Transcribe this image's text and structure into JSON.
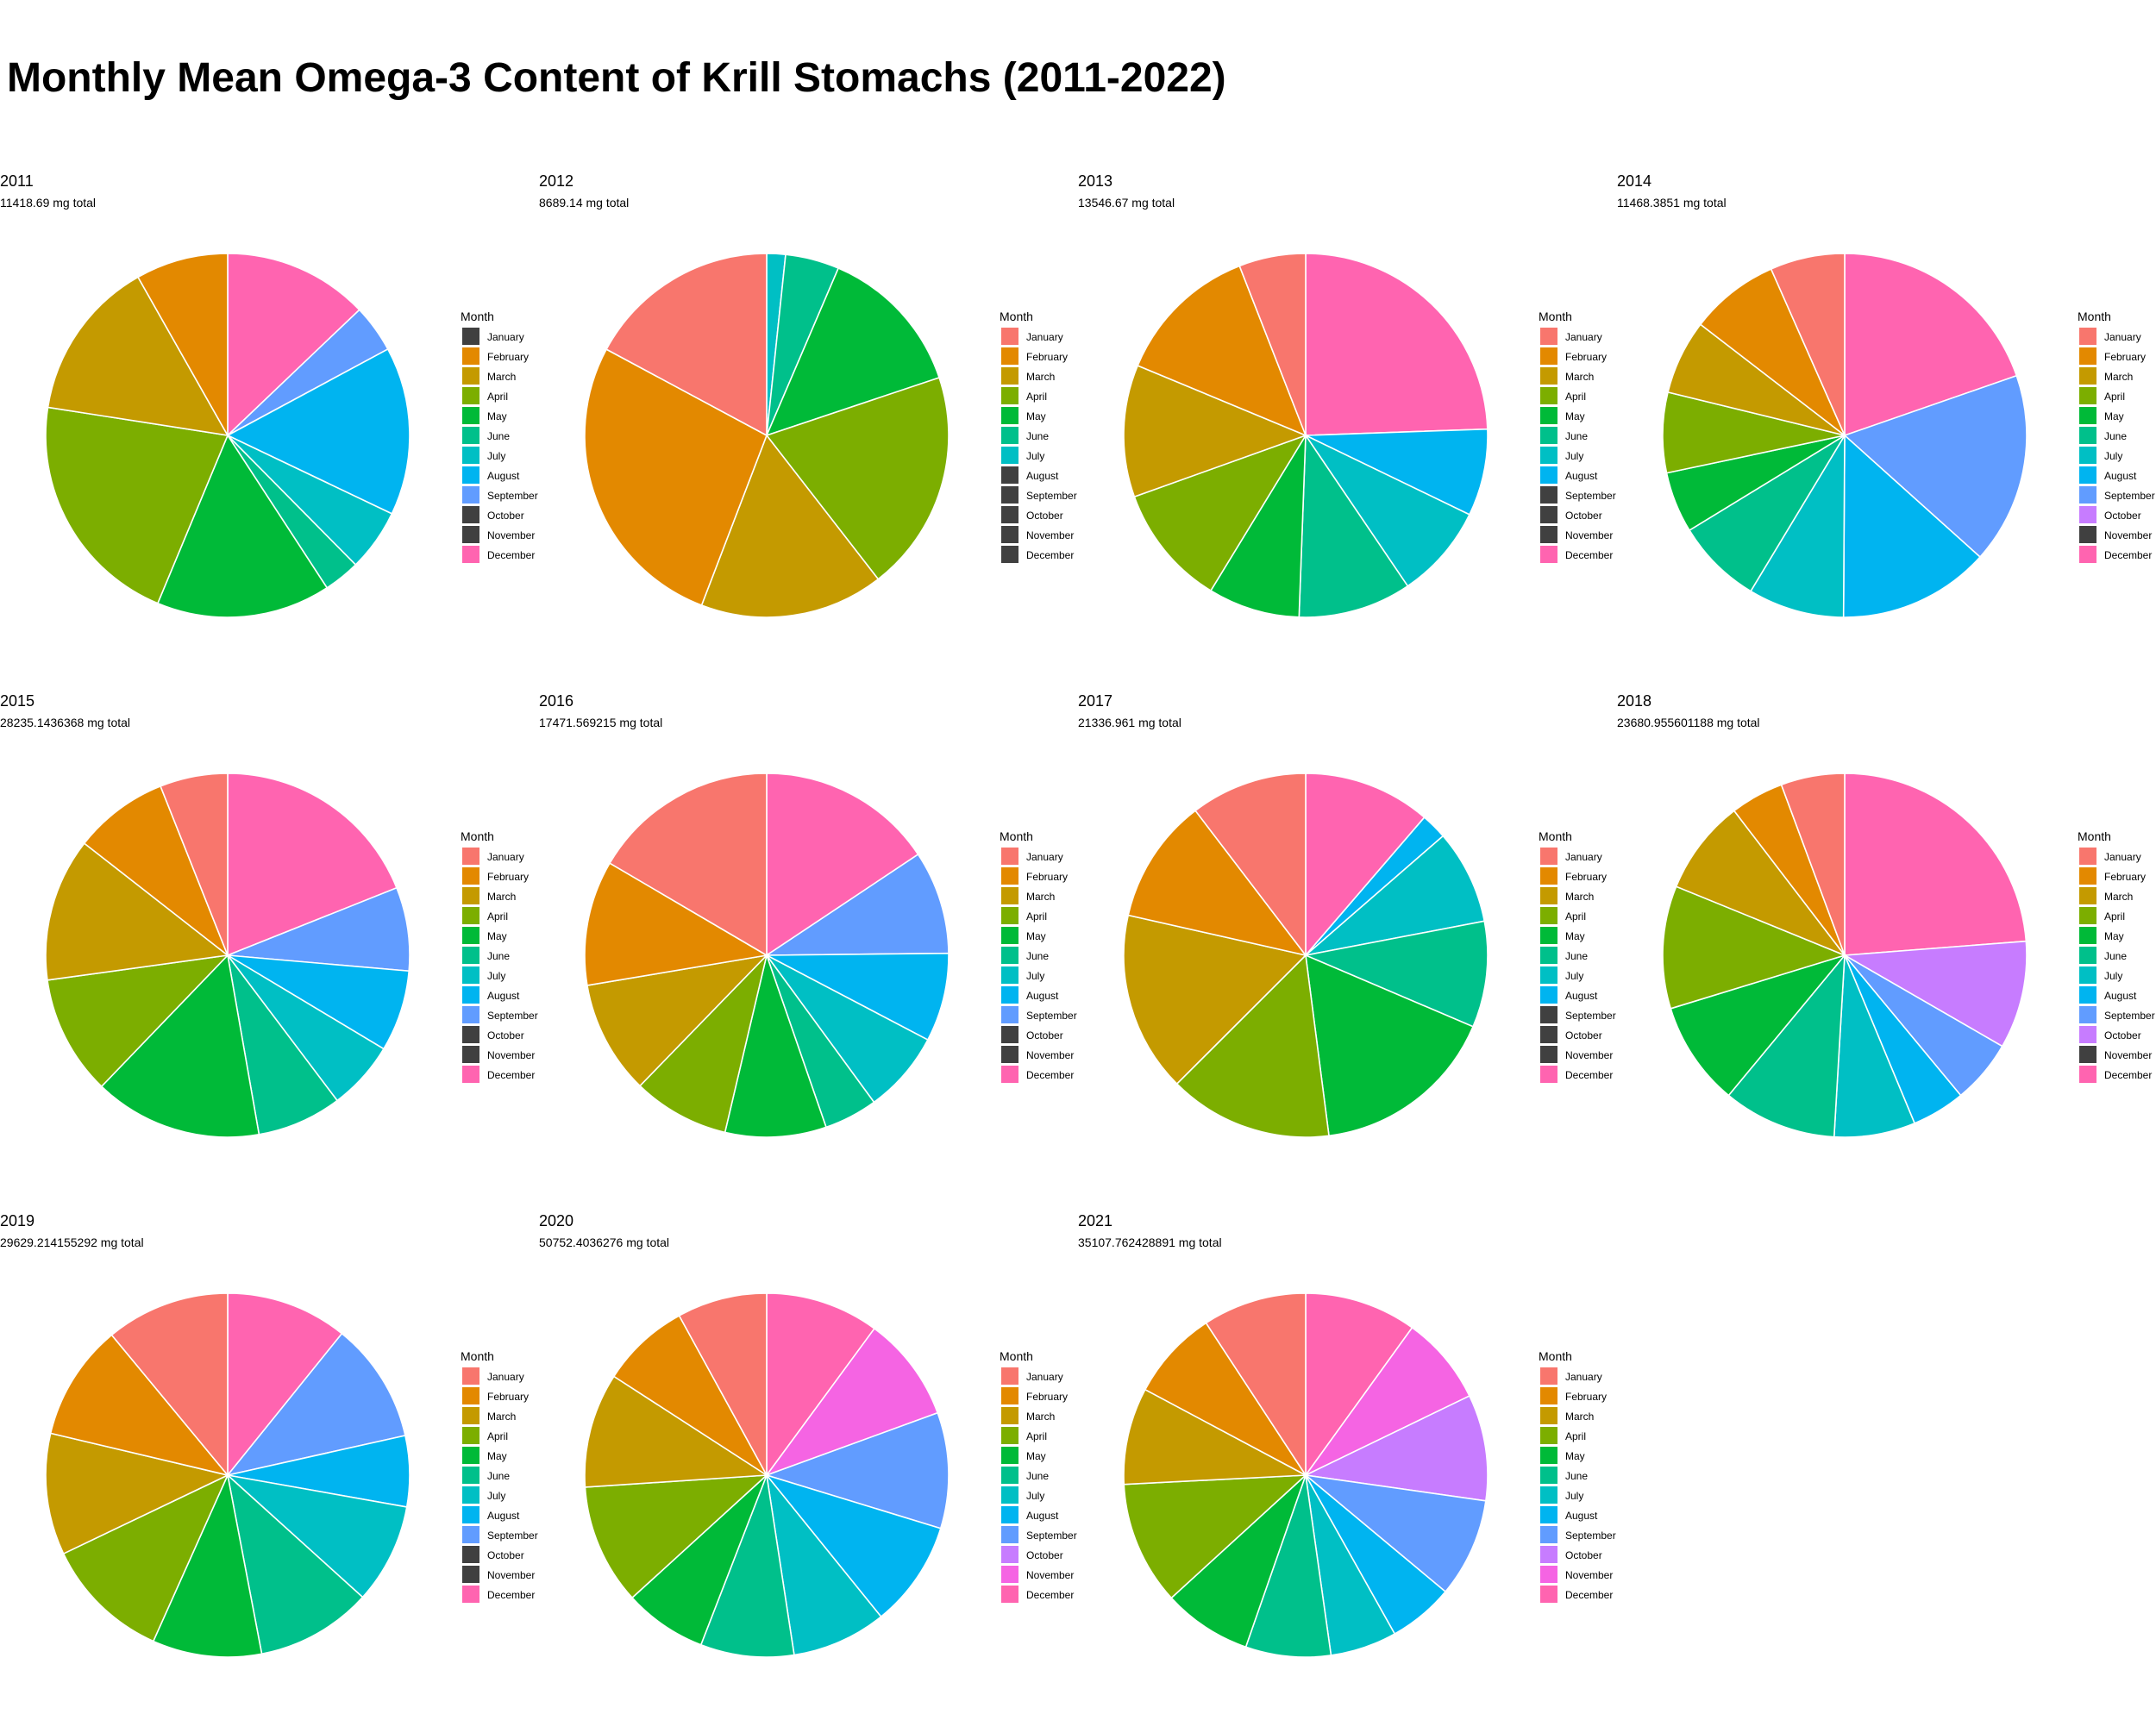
{
  "title": "Monthly Mean Omega-3 Content of Krill Stomachs (2011-2022)",
  "legend_title": "Month",
  "months": [
    "January",
    "February",
    "March",
    "April",
    "May",
    "June",
    "July",
    "August",
    "September",
    "October",
    "November",
    "December"
  ],
  "month_colors": [
    "#F8766D",
    "#E38900",
    "#C49A00",
    "#7CAE00",
    "#00BA38",
    "#00C08B",
    "#00BFC4",
    "#00B4F0",
    "#619CFF",
    "#C77CFF",
    "#F564E3",
    "#FF64B0"
  ],
  "missing_color": "#404040",
  "chart_data": [
    {
      "type": "pie",
      "title": "2011",
      "subtitle": "11418.69 mg total",
      "present": [
        false,
        true,
        true,
        true,
        true,
        true,
        true,
        true,
        true,
        false,
        false,
        true
      ],
      "values": [
        0,
        7.9,
        13.8,
        20.4,
        14.9,
        3.1,
        5.3,
        14.4,
        4.1,
        0,
        0,
        12.4
      ]
    },
    {
      "type": "pie",
      "title": "2012",
      "subtitle": "8689.14 mg total",
      "present": [
        true,
        true,
        true,
        true,
        true,
        true,
        true,
        false,
        false,
        false,
        false,
        false
      ],
      "values": [
        16.5,
        26.0,
        15.7,
        18.9,
        12.9,
        4.6,
        1.6,
        0,
        0,
        0,
        0,
        0
      ]
    },
    {
      "type": "pie",
      "title": "2013",
      "subtitle": "13546.67 mg total",
      "present": [
        true,
        true,
        true,
        true,
        true,
        true,
        true,
        true,
        false,
        false,
        false,
        true
      ],
      "values": [
        5.6,
        12.1,
        11.1,
        10.2,
        7.7,
        9.5,
        7.9,
        7.3,
        0,
        0,
        0,
        23.1
      ]
    },
    {
      "type": "pie",
      "title": "2014",
      "subtitle": "11468.3851 mg total",
      "present": [
        true,
        true,
        true,
        true,
        true,
        true,
        true,
        true,
        true,
        true,
        false,
        true
      ],
      "values": [
        6.6,
        7.9,
        6.6,
        7.1,
        5.4,
        7.6,
        8.5,
        13.4,
        16.9,
        0,
        0,
        19.6
      ]
    },
    {
      "type": "pie",
      "title": "2015",
      "subtitle": "28235.1436368 mg total",
      "present": [
        true,
        true,
        true,
        true,
        true,
        true,
        true,
        true,
        true,
        false,
        false,
        true
      ],
      "values": [
        6.0,
        8.4,
        12.7,
        10.6,
        14.9,
        7.5,
        6.1,
        7.2,
        7.4,
        0,
        0,
        18.9
      ]
    },
    {
      "type": "pie",
      "title": "2016",
      "subtitle": "17471.569215 mg total",
      "present": [
        true,
        true,
        true,
        true,
        true,
        true,
        true,
        true,
        true,
        false,
        false,
        true
      ],
      "values": [
        16.4,
        11.0,
        10.0,
        8.5,
        8.9,
        4.7,
        7.2,
        7.8,
        9.1,
        0,
        0,
        15.5
      ]
    },
    {
      "type": "pie",
      "title": "2017",
      "subtitle": "21336.961 mg total",
      "present": [
        true,
        true,
        true,
        true,
        true,
        true,
        true,
        true,
        false,
        false,
        false,
        true
      ],
      "values": [
        9.9,
        10.6,
        15.3,
        13.9,
        15.8,
        9.0,
        8.0,
        2.2,
        0,
        0,
        0,
        10.8
      ]
    },
    {
      "type": "pie",
      "title": "2018",
      "subtitle": "23680.955601188 mg total",
      "present": [
        true,
        true,
        true,
        true,
        true,
        true,
        true,
        true,
        true,
        true,
        false,
        true
      ],
      "values": [
        5.5,
        4.6,
        8.2,
        10.6,
        9.0,
        9.8,
        7.0,
        4.6,
        5.5,
        9.3,
        0,
        23.1
      ]
    },
    {
      "type": "pie",
      "title": "2019",
      "subtitle": "29629.214155292 mg total",
      "present": [
        true,
        true,
        true,
        true,
        true,
        true,
        true,
        true,
        true,
        false,
        false,
        true
      ],
      "values": [
        11.0,
        10.3,
        10.8,
        11.2,
        9.7,
        10.3,
        8.9,
        6.3,
        10.7,
        0,
        0,
        10.8
      ]
    },
    {
      "type": "pie",
      "title": "2020",
      "subtitle": "50752.4036276 mg total",
      "present": [
        true,
        true,
        true,
        true,
        true,
        true,
        true,
        true,
        true,
        true,
        true,
        true
      ],
      "values": [
        7.6,
        7.5,
        9.7,
        10.2,
        7.0,
        7.9,
        8.0,
        9.0,
        9.8,
        0,
        8.9,
        9.6
      ]
    },
    {
      "type": "pie",
      "title": "2021",
      "subtitle": "35107.762428891 mg total",
      "present": [
        true,
        true,
        true,
        true,
        true,
        true,
        true,
        true,
        true,
        true,
        true,
        true
      ],
      "values": [
        8.9,
        7.7,
        8.3,
        10.6,
        7.6,
        7.3,
        5.7,
        5.6,
        8.5,
        9.1,
        7.6,
        9.6
      ]
    }
  ]
}
